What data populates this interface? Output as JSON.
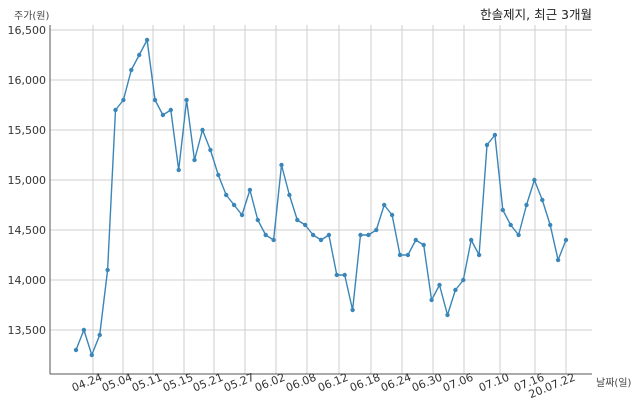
{
  "chart_data": {
    "type": "line",
    "title": "한솔제지, 최근 3개월",
    "ylabel": "주가(원)",
    "xlabel": "날짜(일)",
    "ylim": [
      13100,
      16550
    ],
    "yticks": [
      13500,
      14000,
      14500,
      15000,
      15500,
      16000,
      16500
    ],
    "ytick_labels": [
      "13,500",
      "14,000",
      "14,500",
      "15,000",
      "15,500",
      "16,000",
      "16,500"
    ],
    "xtick_labels": [
      "04.24",
      "05.04",
      "05.11",
      "05.15",
      "05.21",
      "05.27",
      "06.02",
      "06.08",
      "06.12",
      "06.18",
      "06.24",
      "06.30",
      "07.06",
      "07.10",
      "07.16",
      "20.07.22"
    ],
    "grid": true,
    "line_color": "#3a86b8",
    "series": [
      {
        "values": [
          13300,
          13500,
          13250,
          13450,
          14100,
          15700,
          15800,
          16100,
          16250,
          16400,
          15800,
          15650,
          15700,
          15100,
          15800,
          15200,
          15500,
          15300,
          15050,
          14850,
          14750,
          14650,
          14900,
          14600,
          14450,
          14400,
          15150,
          14850,
          14600,
          14550,
          14450,
          14400,
          14450,
          14050,
          14050,
          13700,
          14450,
          14450,
          14500,
          14750,
          14650,
          14250,
          14250,
          14400,
          14350,
          13800,
          13950,
          13650,
          13900,
          14000,
          14400,
          14250,
          15350,
          15450,
          14700,
          14550,
          14450,
          14750,
          15000,
          14800,
          14550,
          14200,
          14400
        ]
      }
    ]
  }
}
